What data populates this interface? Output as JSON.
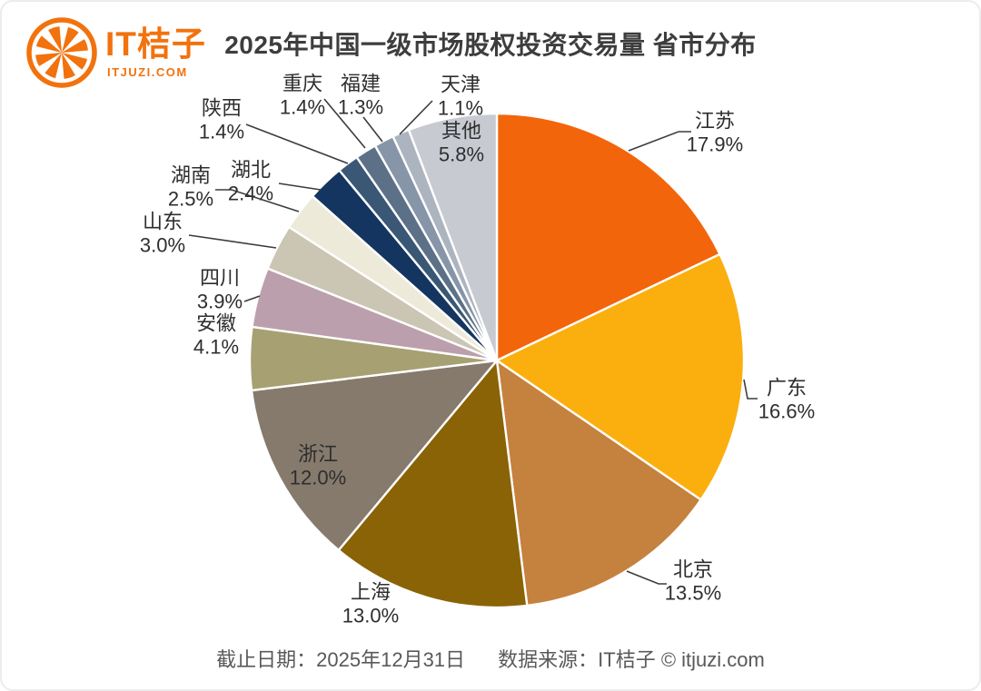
{
  "header": {
    "logo": {
      "brand": "IT桔子",
      "domain": "ITJUZI.COM",
      "accent_color": "#f2720d"
    },
    "title": "2025年中国一级市场股权投资交易量 省市分布"
  },
  "chart_data": {
    "type": "pie",
    "title": "2025年中国一级市场股权投资交易量 省市分布",
    "start_angle": "12-o-clock, clockwise",
    "legend_position": "none",
    "label_style": "callout-labels-with-percent",
    "slice_border_color": "#ffffff",
    "items": [
      {
        "name": "江苏",
        "value": 17.9,
        "pct_text": "17.9%",
        "color": "#F3650B"
      },
      {
        "name": "广东",
        "value": 16.6,
        "pct_text": "16.6%",
        "color": "#FBAF0E"
      },
      {
        "name": "北京",
        "value": 13.5,
        "pct_text": "13.5%",
        "color": "#C5813E"
      },
      {
        "name": "上海",
        "value": 13.0,
        "pct_text": "13.0%",
        "color": "#8A6307"
      },
      {
        "name": "浙江",
        "value": 12.0,
        "pct_text": "12.0%",
        "color": "#867A6D"
      },
      {
        "name": "安徽",
        "value": 4.1,
        "pct_text": "4.1%",
        "color": "#A7A072"
      },
      {
        "name": "四川",
        "value": 3.9,
        "pct_text": "3.9%",
        "color": "#BC9FAC"
      },
      {
        "name": "山东",
        "value": 3.0,
        "pct_text": "3.0%",
        "color": "#CBC5B4"
      },
      {
        "name": "湖南",
        "value": 2.5,
        "pct_text": "2.5%",
        "color": "#EEEADA"
      },
      {
        "name": "湖北",
        "value": 2.4,
        "pct_text": "2.4%",
        "color": "#14355F"
      },
      {
        "name": "陕西",
        "value": 1.4,
        "pct_text": "1.4%",
        "color": "#3A5775"
      },
      {
        "name": "重庆",
        "value": 1.4,
        "pct_text": "1.4%",
        "color": "#5C7188"
      },
      {
        "name": "福建",
        "value": 1.3,
        "pct_text": "1.3%",
        "color": "#8695A8"
      },
      {
        "name": "天津",
        "value": 1.1,
        "pct_text": "1.1%",
        "color": "#ACB4BF"
      },
      {
        "name": "其他",
        "value": 5.8,
        "pct_text": "5.8%",
        "color": "#C7CAD1"
      }
    ]
  },
  "footer": {
    "deadline": "截止日期：2025年12月31日",
    "source": "数据来源：IT桔子 © itjuzi.com"
  }
}
